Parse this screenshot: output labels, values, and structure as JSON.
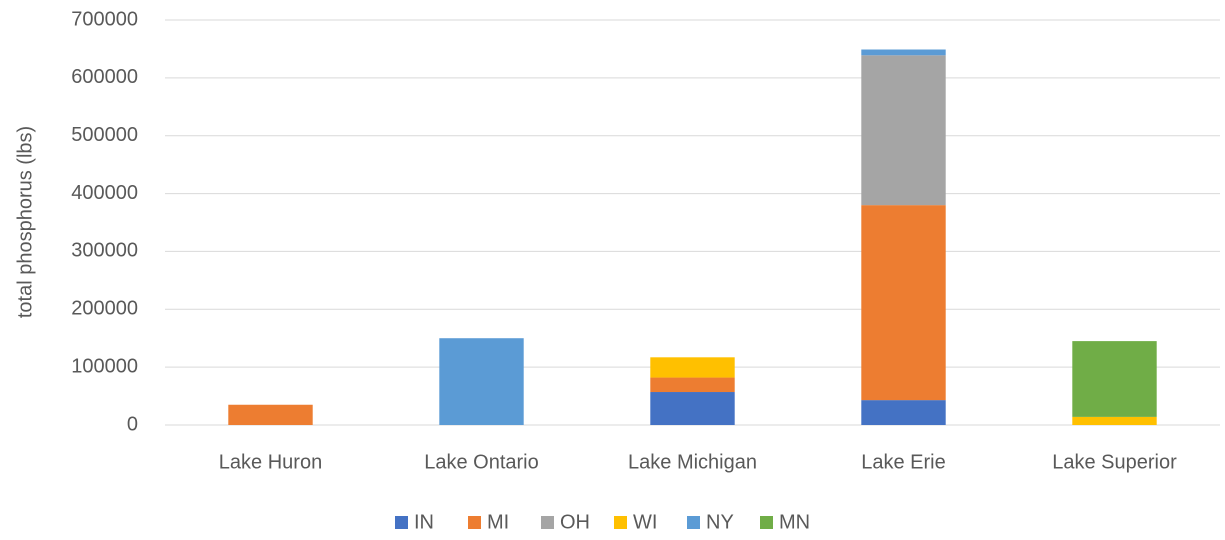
{
  "chart_data": {
    "type": "bar",
    "stacked": true,
    "y_label": "total phosphorus (lbs)",
    "categories": [
      "Lake Huron",
      "Lake Ontario",
      "Lake Michigan",
      "Lake Erie",
      "Lake Superior"
    ],
    "series": [
      {
        "name": "IN",
        "color": "#4472c4",
        "values": [
          null,
          null,
          57000,
          43000,
          null
        ]
      },
      {
        "name": "MI",
        "color": "#ed7d31",
        "values": [
          35000,
          null,
          25000,
          337000,
          null
        ]
      },
      {
        "name": "OH",
        "color": "#a5a5a5",
        "values": [
          null,
          null,
          null,
          259000,
          null
        ]
      },
      {
        "name": "WI",
        "color": "#ffc000",
        "values": [
          null,
          null,
          35000,
          null,
          14000
        ]
      },
      {
        "name": "NY",
        "color": "#5b9bd5",
        "values": [
          null,
          150000,
          null,
          10000,
          null
        ]
      },
      {
        "name": "MN",
        "color": "#70ad47",
        "values": [
          null,
          null,
          null,
          null,
          131000
        ]
      }
    ],
    "ylim": [
      0,
      700000
    ],
    "yticks": [
      0,
      100000,
      200000,
      300000,
      400000,
      500000,
      600000,
      700000
    ],
    "grid": true,
    "legend": "bottom"
  }
}
